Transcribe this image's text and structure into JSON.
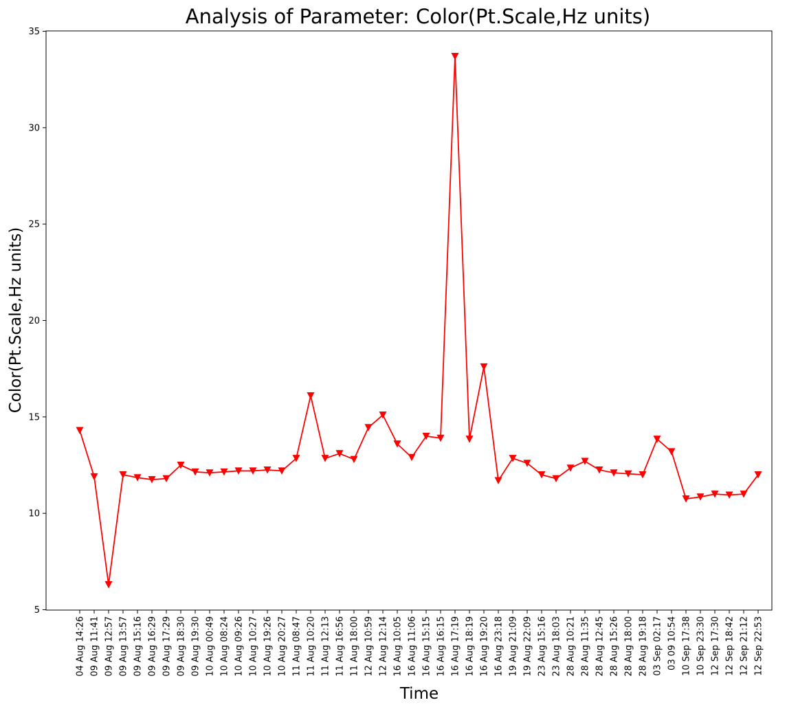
{
  "chart_data": {
    "type": "line",
    "title": "Analysis of Parameter: Color(Pt.Scale,Hz units)",
    "xlabel": "Time",
    "ylabel": "Color(Pt.Scale,Hz units)",
    "ylim": [
      5,
      35
    ],
    "yticks": [
      5,
      10,
      15,
      20,
      25,
      30,
      35
    ],
    "grid": false,
    "line_color": "#ff0000",
    "marker": "triangle-down",
    "categories": [
      "04 Aug 14:26",
      "09 Aug 11:41",
      "09 Aug 12:57",
      "09 Aug 13:57",
      "09 Aug 15:16",
      "09 Aug 16:29",
      "09 Aug 17:29",
      "09 Aug 18:30",
      "09 Aug 19:30",
      "10 Aug 00:49",
      "10 Aug 08:24",
      "10 Aug 09:26",
      "10 Aug 10:27",
      "10 Aug 19:26",
      "10 Aug 20:27",
      "11 Aug 08:47",
      "11 Aug 10:20",
      "11 Aug 12:13",
      "11 Aug 16:56",
      "11 Aug 18:00",
      "12 Aug 10:59",
      "12 Aug 12:14",
      "16 Aug 10:05",
      "16 Aug 11:06",
      "16 Aug 15:15",
      "16 Aug 16:15",
      "16 Aug 17:19",
      "16 Aug 18:19",
      "16 Aug 19:20",
      "16 Aug 23:18",
      "19 Aug 21:09",
      "19 Aug 22:09",
      "23 Aug 15:16",
      "23 Aug 18:03",
      "28 Aug 10:21",
      "28 Aug 11:35",
      "28 Aug 12:45",
      "28 Aug 15:26",
      "28 Aug 18:00",
      "28 Aug 19:18",
      "03 Sep 02:17",
      "03 09 10:54",
      "10 Sep 17:38",
      "10 Sep 23:30",
      "12 Sep 17:30",
      "12 Sep 18:42",
      "12 Sep 21:12",
      "12 Sep 22:53"
    ],
    "series": [
      {
        "values": [
          14.3,
          11.9,
          6.3,
          12.0,
          11.85,
          11.75,
          11.8,
          12.5,
          12.15,
          12.1,
          12.15,
          12.2,
          12.2,
          12.25,
          12.2,
          12.85,
          16.1,
          12.85,
          13.1,
          12.8,
          14.45,
          15.1,
          13.6,
          12.9,
          14.0,
          13.9,
          33.7,
          13.85,
          17.6,
          11.7,
          12.85,
          12.6,
          12.0,
          11.8,
          12.35,
          12.7,
          12.25,
          12.1,
          12.05,
          12.0,
          13.85,
          13.2,
          10.75,
          10.85,
          11.0,
          10.95,
          11.0,
          12.0
        ]
      }
    ]
  }
}
